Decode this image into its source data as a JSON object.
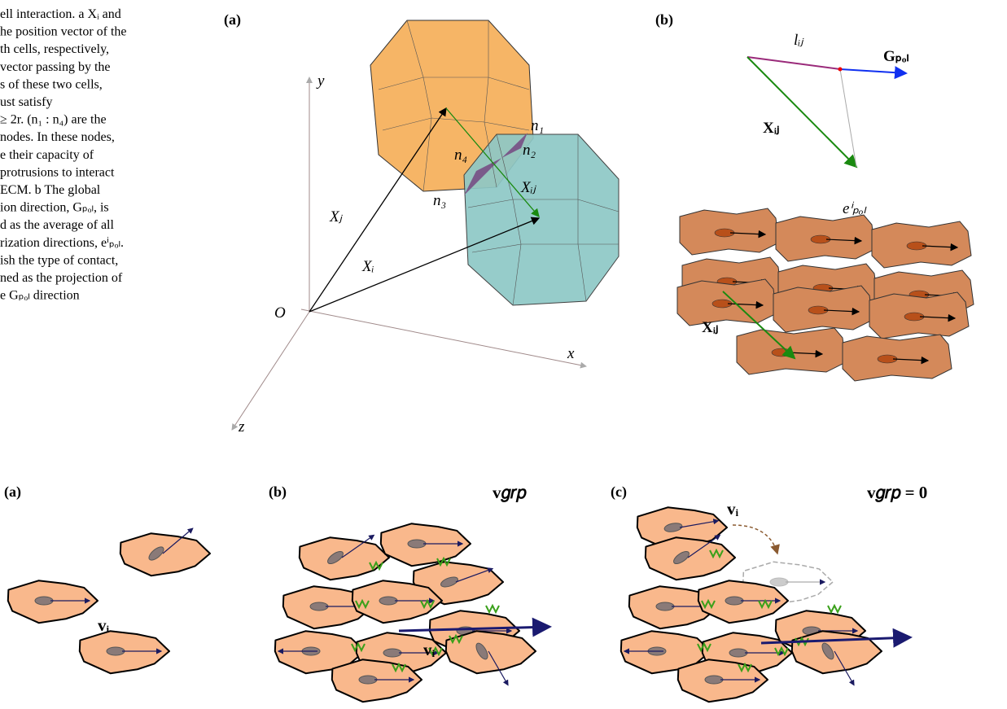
{
  "caption": {
    "lines": [
      "ell interaction. a Xᵢ and",
      "he position vector of the",
      "th cells, respectively,",
      "vector passing by the",
      "s of these two cells,",
      "ust satisfy",
      "≥ 2r. (n₁ : n₄) are the",
      "nodes. In these nodes,",
      "e their capacity of",
      "protrusions to interact",
      "ECM. b The global",
      "ion direction, Gₚₒₗ, is",
      "d as the average of all",
      "rization directions, eⁱₚₒₗ.",
      "ish the type of contact,",
      "ned as the projection of",
      "e Gₚₒₗ direction"
    ]
  },
  "top_a": {
    "label": "(a)",
    "axis_y": "y",
    "axis_x": "x",
    "axis_z": "z",
    "origin": "O",
    "xj": "Xⱼ",
    "xi": "Xᵢ",
    "xij": "Xᵢⱼ",
    "n1": "n₁",
    "n2": "n₂",
    "n3": "n₃",
    "n4": "n₄"
  },
  "top_b": {
    "label": "(b)",
    "lij": "lᵢⱼ",
    "gpol": "Gₚₒₗ",
    "xij": "Xᵢⱼ",
    "epol": "eⁱₚₒₗ",
    "xij2": "Xᵢⱼ"
  },
  "bottom_a": {
    "label": "(a)",
    "vi": "vᵢ"
  },
  "bottom_b": {
    "label": "(b)",
    "vgrp": "v𝑔𝑟𝑝",
    "vi": "vᵢ"
  },
  "bottom_c": {
    "label": "(c)",
    "vi": "vᵢ",
    "vgrp": "v𝑔𝑟𝑝 = 0"
  }
}
